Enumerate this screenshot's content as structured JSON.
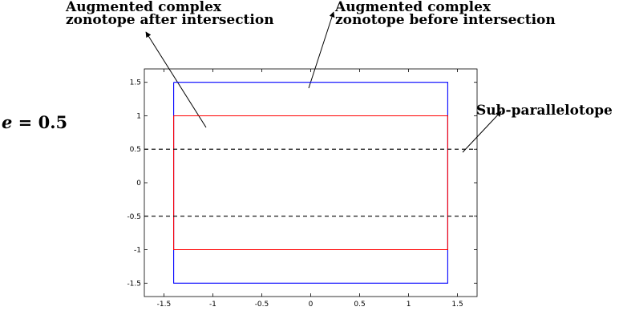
{
  "equation": {
    "var": "e",
    "rest": " = 0.5"
  },
  "annotations": {
    "after": [
      "Augmented complex",
      "zonotope after intersection"
    ],
    "before": [
      "Augmented complex",
      "zonotope before intersection"
    ],
    "sub": "Sub-parallelotope"
  },
  "chart_data": {
    "type": "line",
    "xlim": [
      -1.7,
      1.7
    ],
    "ylim": [
      -1.7,
      1.7
    ],
    "x_ticks": [
      "-1.5",
      "-1",
      "-0.5",
      "0",
      "0.5",
      "1",
      "1.5"
    ],
    "y_ticks": [
      "1.5",
      "1",
      "0.5",
      "0",
      "-0.5",
      "-1",
      "-1.5"
    ],
    "series": [
      {
        "color": "#0000ff",
        "x": [
          -1.4,
          1.4,
          1.4,
          -1.4,
          -1.4
        ],
        "y": [
          1.5,
          1.5,
          -1.5,
          -1.5,
          1.5
        ]
      },
      {
        "color": "#ff0000",
        "x": [
          -1.4,
          1.4,
          1.4,
          -1.4,
          -1.4
        ],
        "y": [
          1.0,
          1.0,
          -1.0,
          -1.0,
          1.0
        ]
      },
      {
        "color": "#000000",
        "dash": true,
        "x": [
          -1.7,
          1.7
        ],
        "y": [
          0.5,
          0.5
        ]
      },
      {
        "color": "#000000",
        "dash": true,
        "x": [
          -1.7,
          1.7
        ],
        "y": [
          -0.5,
          -0.5
        ]
      }
    ]
  }
}
